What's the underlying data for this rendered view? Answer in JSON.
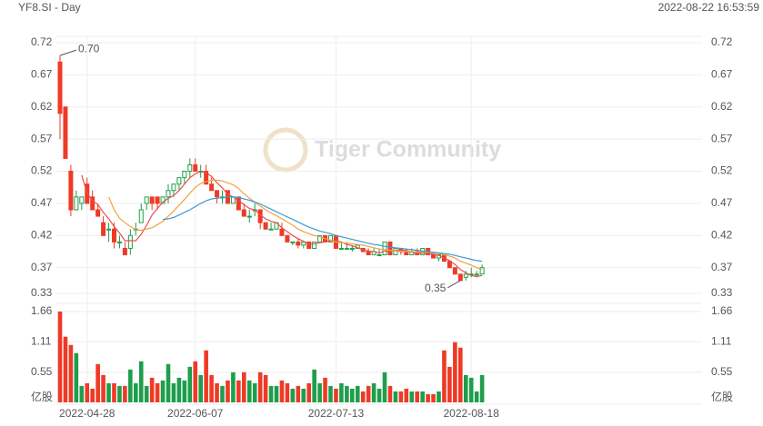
{
  "chart_data": {
    "type": "candlestick",
    "title": "YF8.SI - Day",
    "timestamp": "2022-08-22 16:53:59",
    "watermark": "Tiger Community",
    "categories": [
      null,
      null,
      null,
      null,
      null,
      "2022-04-28",
      null,
      null,
      null,
      null,
      null,
      null,
      null,
      null,
      null,
      null,
      null,
      null,
      null,
      null,
      null,
      null,
      null,
      null,
      null,
      "2022-06-07",
      null,
      null,
      null,
      null,
      null,
      null,
      null,
      null,
      null,
      null,
      null,
      null,
      null,
      null,
      null,
      null,
      null,
      null,
      null,
      null,
      null,
      null,
      null,
      null,
      null,
      "2022-07-13",
      null,
      null,
      null,
      null,
      null,
      null,
      null,
      null,
      null,
      null,
      null,
      null,
      null,
      null,
      null,
      null,
      null,
      null,
      null,
      null,
      null,
      null,
      null,
      null,
      "2022-08-18",
      null,
      null
    ],
    "open": [
      0.69,
      0.62,
      0.52,
      0.46,
      0.47,
      0.5,
      0.48,
      0.46,
      0.44,
      0.43,
      0.43,
      0.41,
      0.4,
      0.4,
      0.43,
      0.44,
      0.47,
      0.48,
      0.48,
      0.47,
      0.48,
      0.49,
      0.5,
      0.51,
      0.52,
      0.53,
      0.52,
      0.52,
      0.5,
      0.49,
      0.48,
      0.49,
      0.47,
      0.48,
      0.46,
      0.45,
      0.46,
      0.46,
      0.44,
      0.43,
      0.43,
      0.43,
      0.42,
      0.41,
      0.41,
      0.405,
      0.41,
      0.4,
      0.41,
      0.42,
      0.41,
      0.42,
      0.4,
      0.4,
      0.4,
      0.4,
      0.4,
      0.395,
      0.39,
      0.39,
      0.39,
      0.41,
      0.39,
      0.4,
      0.395,
      0.39,
      0.395,
      0.39,
      0.4,
      0.39,
      0.385,
      0.39,
      0.38,
      0.37,
      0.36,
      0.355,
      0.36,
      0.36,
      0.36
    ],
    "high": [
      0.7,
      0.62,
      0.53,
      0.49,
      0.48,
      0.51,
      0.49,
      0.47,
      0.45,
      0.44,
      0.44,
      0.42,
      0.41,
      0.43,
      0.44,
      0.47,
      0.48,
      0.48,
      0.48,
      0.48,
      0.5,
      0.5,
      0.51,
      0.52,
      0.54,
      0.54,
      0.53,
      0.53,
      0.51,
      0.49,
      0.49,
      0.49,
      0.48,
      0.48,
      0.47,
      0.46,
      0.47,
      0.46,
      0.44,
      0.44,
      0.44,
      0.44,
      0.42,
      0.41,
      0.415,
      0.41,
      0.41,
      0.41,
      0.42,
      0.42,
      0.42,
      0.42,
      0.41,
      0.41,
      0.405,
      0.405,
      0.4,
      0.4,
      0.4,
      0.4,
      0.41,
      0.41,
      0.4,
      0.4,
      0.4,
      0.4,
      0.4,
      0.4,
      0.4,
      0.39,
      0.39,
      0.39,
      0.38,
      0.37,
      0.36,
      0.365,
      0.37,
      0.365,
      0.375
    ],
    "low": [
      0.57,
      0.54,
      0.45,
      0.46,
      0.46,
      0.47,
      0.46,
      0.45,
      0.42,
      0.41,
      0.4,
      0.4,
      0.39,
      0.39,
      0.42,
      0.44,
      0.46,
      0.46,
      0.46,
      0.47,
      0.47,
      0.48,
      0.49,
      0.5,
      0.51,
      0.52,
      0.51,
      0.5,
      0.49,
      0.47,
      0.47,
      0.47,
      0.47,
      0.46,
      0.45,
      0.44,
      0.45,
      0.43,
      0.43,
      0.43,
      0.43,
      0.42,
      0.41,
      0.405,
      0.4,
      0.4,
      0.4,
      0.4,
      0.41,
      0.41,
      0.41,
      0.4,
      0.4,
      0.4,
      0.395,
      0.4,
      0.395,
      0.39,
      0.39,
      0.39,
      0.39,
      0.39,
      0.39,
      0.39,
      0.39,
      0.39,
      0.39,
      0.39,
      0.39,
      0.385,
      0.38,
      0.38,
      0.37,
      0.36,
      0.35,
      0.35,
      0.355,
      0.355,
      0.36
    ],
    "close": [
      0.61,
      0.54,
      0.46,
      0.48,
      0.48,
      0.47,
      0.46,
      0.45,
      0.42,
      0.43,
      0.41,
      0.41,
      0.39,
      0.42,
      0.43,
      0.46,
      0.48,
      0.47,
      0.47,
      0.48,
      0.49,
      0.5,
      0.51,
      0.52,
      0.53,
      0.52,
      0.52,
      0.5,
      0.49,
      0.48,
      0.48,
      0.47,
      0.48,
      0.46,
      0.45,
      0.45,
      0.46,
      0.44,
      0.43,
      0.43,
      0.44,
      0.42,
      0.41,
      0.41,
      0.405,
      0.41,
      0.4,
      0.41,
      0.42,
      0.41,
      0.42,
      0.4,
      0.4,
      0.4,
      0.4,
      0.405,
      0.395,
      0.39,
      0.395,
      0.39,
      0.41,
      0.39,
      0.4,
      0.395,
      0.39,
      0.395,
      0.39,
      0.4,
      0.39,
      0.385,
      0.39,
      0.38,
      0.37,
      0.36,
      0.35,
      0.36,
      0.36,
      0.36,
      0.37
    ],
    "volume": [
      1.66,
      1.2,
      1.05,
      0.9,
      0.3,
      0.35,
      0.25,
      0.7,
      0.5,
      0.35,
      0.35,
      0.3,
      0.3,
      0.6,
      0.35,
      0.75,
      0.3,
      0.45,
      0.35,
      0.4,
      0.7,
      0.35,
      0.45,
      0.4,
      0.65,
      0.75,
      0.5,
      0.95,
      0.5,
      0.35,
      0.3,
      0.4,
      0.55,
      0.4,
      0.55,
      0.4,
      0.35,
      0.55,
      0.5,
      0.3,
      0.3,
      0.4,
      0.35,
      0.25,
      0.3,
      0.25,
      0.35,
      0.6,
      0.35,
      0.45,
      0.3,
      0.25,
      0.35,
      0.3,
      0.25,
      0.3,
      0.2,
      0.3,
      0.35,
      0.25,
      0.55,
      0.3,
      0.2,
      0.2,
      0.25,
      0.2,
      0.2,
      0.2,
      0.15,
      0.15,
      0.2,
      0.95,
      0.65,
      1.1,
      1.0,
      0.5,
      0.45,
      0.2,
      0.5
    ],
    "up_color": "#1e9e4c",
    "down_color": "#ee3a26",
    "ma": [
      {
        "color": "#e8504a",
        "values": [
          null,
          null,
          null,
          null,
          0.514,
          0.486,
          0.474,
          0.468,
          0.456,
          0.446,
          0.434,
          0.424,
          0.412,
          0.412,
          0.412,
          0.422,
          0.436,
          0.452,
          0.462,
          0.472,
          0.478,
          0.482,
          0.49,
          0.5,
          0.51,
          0.516,
          0.52,
          0.518,
          0.512,
          0.502,
          0.494,
          0.484,
          0.48,
          0.474,
          0.468,
          0.462,
          0.46,
          0.452,
          0.446,
          0.442,
          0.44,
          0.432,
          0.426,
          0.42,
          0.415,
          0.411,
          0.407,
          0.407,
          0.409,
          0.41,
          0.412,
          0.412,
          0.41,
          0.406,
          0.404,
          0.401,
          0.398,
          0.396,
          0.395,
          0.393,
          0.396,
          0.395,
          0.397,
          0.397,
          0.397,
          0.394,
          0.392,
          0.393,
          0.392,
          0.391,
          0.389,
          0.385,
          0.381,
          0.375,
          0.367,
          0.362,
          0.358,
          0.356,
          0.358
        ]
      },
      {
        "color": "#f0a33c",
        "values": [
          null,
          null,
          null,
          null,
          null,
          null,
          null,
          null,
          null,
          0.48,
          0.46,
          0.447,
          0.44,
          0.434,
          0.429,
          0.428,
          0.43,
          0.432,
          0.437,
          0.442,
          0.45,
          0.458,
          0.467,
          0.476,
          0.486,
          0.495,
          0.501,
          0.504,
          0.506,
          0.506,
          0.505,
          0.502,
          0.499,
          0.493,
          0.485,
          0.478,
          0.472,
          0.466,
          0.46,
          0.455,
          0.451,
          0.446,
          0.441,
          0.436,
          0.43,
          0.426,
          0.423,
          0.42,
          0.418,
          0.415,
          0.413,
          0.41,
          0.409,
          0.408,
          0.407,
          0.406,
          0.405,
          0.403,
          0.401,
          0.399,
          0.398,
          0.397,
          0.396,
          0.396,
          0.395,
          0.395,
          0.394,
          0.395,
          0.394,
          0.393,
          0.392,
          0.39,
          0.388,
          0.385,
          0.38,
          0.377,
          0.374,
          0.37,
          0.367
        ]
      },
      {
        "color": "#3d9ad6",
        "values": [
          null,
          null,
          null,
          null,
          null,
          null,
          null,
          null,
          null,
          null,
          null,
          null,
          null,
          null,
          null,
          null,
          null,
          null,
          null,
          0.445,
          0.446,
          0.448,
          0.452,
          0.456,
          0.46,
          0.465,
          0.47,
          0.474,
          0.477,
          0.478,
          0.479,
          0.48,
          0.48,
          0.479,
          0.477,
          0.475,
          0.472,
          0.469,
          0.465,
          0.461,
          0.457,
          0.453,
          0.449,
          0.445,
          0.441,
          0.437,
          0.433,
          0.43,
          0.427,
          0.425,
          0.423,
          0.42,
          0.418,
          0.416,
          0.414,
          0.412,
          0.41,
          0.408,
          0.406,
          0.405,
          0.403,
          0.402,
          0.401,
          0.4,
          0.399,
          0.398,
          0.397,
          0.396,
          0.395,
          0.394,
          0.393,
          0.392,
          0.391,
          0.389,
          0.387,
          0.385,
          0.383,
          0.381,
          0.38
        ]
      }
    ],
    "ylim": [
      0.33,
      0.72
    ],
    "yticks": [
      0.72,
      0.67,
      0.62,
      0.57,
      0.52,
      0.47,
      0.42,
      0.37,
      0.33
    ],
    "volume_ylim": [
      0,
      1.66
    ],
    "volume_yticks": [
      1.66,
      1.11,
      0.55,
      {
        "value": 0,
        "label": "亿股"
      }
    ],
    "high_label": {
      "value": 0.7,
      "label": "0.70"
    },
    "low_label": {
      "value": 0.35,
      "label": "0.35"
    },
    "grid": true
  }
}
